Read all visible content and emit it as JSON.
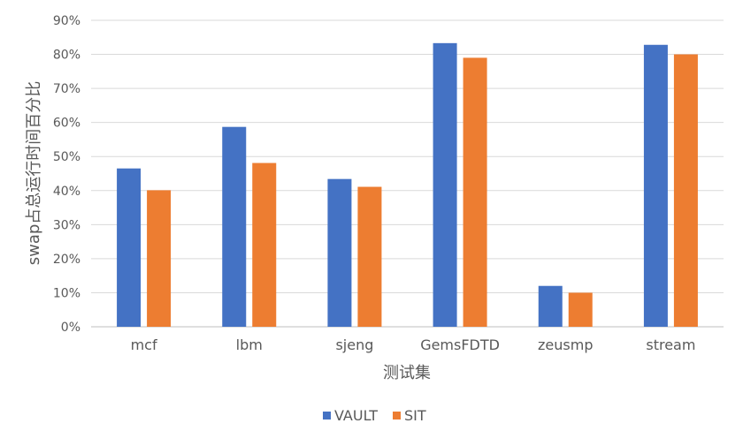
{
  "chart_data": {
    "type": "bar",
    "categories": [
      "mcf",
      "lbm",
      "sjeng",
      "GemsFDTD",
      "zeusmp",
      "stream"
    ],
    "series": [
      {
        "name": "VAULT",
        "values": [
          46.5,
          58.7,
          43.4,
          83.3,
          12.0,
          82.8
        ],
        "color": "#4472c4"
      },
      {
        "name": "SIT",
        "values": [
          40.1,
          48.1,
          41.1,
          79.0,
          10.0,
          80.0
        ],
        "color": "#ed7d31"
      }
    ],
    "xlabel": "测试集",
    "ylabel": "swap占总运行时间百分比",
    "ylim": [
      0,
      90
    ],
    "yticks": [
      0,
      10,
      20,
      30,
      40,
      50,
      60,
      70,
      80,
      90
    ],
    "ytick_labels": [
      "0%",
      "10%",
      "20%",
      "30%",
      "40%",
      "50%",
      "60%",
      "70%",
      "80%",
      "90%"
    ],
    "grid": true,
    "legend": "bottom"
  }
}
